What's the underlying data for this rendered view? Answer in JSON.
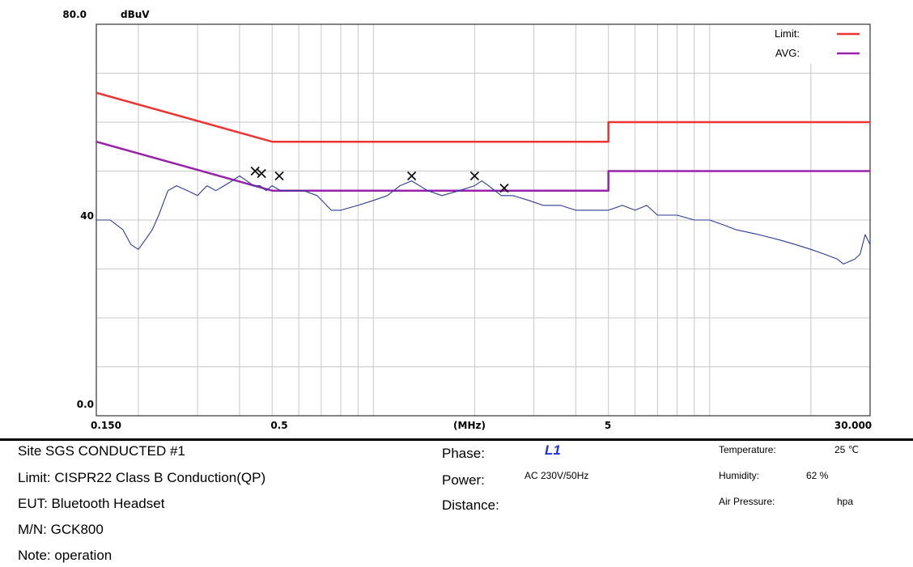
{
  "chart_data": {
    "type": "line",
    "xscale": "log",
    "xlim": [
      0.15,
      30.0
    ],
    "ylim": [
      0,
      80
    ],
    "x_unit": "(MHz)",
    "y_unit": "dBuV",
    "x_ticks": [
      "0.150",
      "0.5",
      "5",
      "30.000"
    ],
    "y_ticks": [
      "80.0",
      "40",
      "0.0"
    ],
    "grid": true,
    "legend_position": "top-right",
    "legend": [
      {
        "label": "Limit:",
        "color": "#ee3333"
      },
      {
        "label": "AVG:",
        "color": "#9922aa"
      }
    ],
    "series": [
      {
        "name": "Limit:",
        "color": "#ee3333",
        "x": [
          0.15,
          0.5,
          5.0,
          5.0,
          30.0
        ],
        "y": [
          66,
          56,
          56,
          60,
          60
        ]
      },
      {
        "name": "AVG:",
        "color": "#9922aa",
        "x": [
          0.15,
          0.5,
          5.0,
          5.0,
          30.0
        ],
        "y": [
          56,
          46,
          46,
          50,
          50
        ]
      },
      {
        "color": "#2a3a9a",
        "x": [
          0.15,
          0.165,
          0.18,
          0.19,
          0.2,
          0.21,
          0.22,
          0.23,
          0.245,
          0.26,
          0.28,
          0.3,
          0.32,
          0.34,
          0.36,
          0.38,
          0.4,
          0.42,
          0.44,
          0.46,
          0.48,
          0.5,
          0.53,
          0.57,
          0.62,
          0.68,
          0.75,
          0.8,
          0.9,
          1.0,
          1.1,
          1.2,
          1.3,
          1.45,
          1.6,
          1.8,
          2.0,
          2.1,
          2.2,
          2.4,
          2.6,
          2.9,
          3.2,
          3.6,
          4.0,
          4.5,
          5.0,
          5.5,
          6.0,
          6.5,
          7.0,
          8.0,
          9.0,
          10.0,
          11.0,
          12.0,
          14.0,
          16.0,
          18.0,
          20.0,
          22.0,
          24.0,
          25.0,
          27.0,
          28.0,
          29.0,
          30.0
        ],
        "y": [
          40,
          40,
          38,
          35,
          34,
          36,
          38,
          41,
          46,
          47,
          46,
          45,
          47,
          46,
          47,
          48,
          49,
          48,
          47,
          47,
          46,
          47,
          46,
          46,
          46,
          45,
          42,
          42,
          43,
          44,
          45,
          47,
          48,
          46,
          45,
          46,
          47,
          48,
          47,
          45,
          45,
          44,
          43,
          43,
          42,
          42,
          42,
          43,
          42,
          43,
          41,
          41,
          40,
          40,
          39,
          38,
          37,
          36,
          35,
          34,
          33,
          32,
          31,
          32,
          33,
          37,
          35
        ]
      },
      {
        "marker": "x",
        "x": [
          0.445,
          0.465,
          0.525,
          1.3,
          2.0,
          2.45
        ],
        "y": [
          50,
          49.5,
          49,
          49,
          49,
          46.5
        ]
      }
    ]
  },
  "info": {
    "site": "Site  SGS CONDUCTED #1",
    "limit": "Limit:  CISPR22 Class B Conduction(QP)",
    "eut": "EUT:  Bluetooth Headset",
    "mn": "M/N:  GCK800",
    "note": "Note:  operation",
    "phase_label": "Phase:",
    "phase_value": "L1",
    "power_label": "Power:",
    "power_value": "AC 230V/50Hz",
    "distance_label": "Distance:",
    "temperature_label": "Temperature:",
    "temperature_value": "25 ℃",
    "humidity_label": "Humidity:",
    "humidity_value": "62 %",
    "air_pressure_label": "Air Pressure:",
    "air_pressure_value": "hpa"
  }
}
